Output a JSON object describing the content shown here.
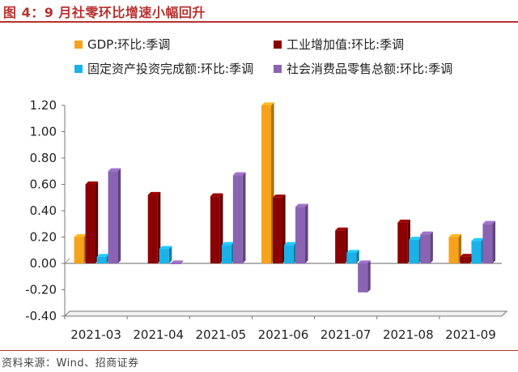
{
  "figure": {
    "title": "图 4：9 月社零环比增速小幅回升",
    "source": "资料来源：Wind、招商证券"
  },
  "chart_data": {
    "type": "bar",
    "categories": [
      "2021-03",
      "2021-04",
      "2021-05",
      "2021-06",
      "2021-07",
      "2021-08",
      "2021-09"
    ],
    "series": [
      {
        "name": "GDP:环比:季调",
        "color": "#f7a21b",
        "values": [
          0.2,
          null,
          null,
          1.2,
          null,
          null,
          0.2
        ]
      },
      {
        "name": "工业增加值:环比:季调",
        "color": "#8b0000",
        "values": [
          0.6,
          0.52,
          0.51,
          0.5,
          0.25,
          0.31,
          0.05
        ]
      },
      {
        "name": "固定资产投资完成额:环比:季调",
        "color": "#1ab2e8",
        "values": [
          0.05,
          0.11,
          0.14,
          0.14,
          0.08,
          0.18,
          0.17
        ]
      },
      {
        "name": "社会消费品零售总额:环比:季调",
        "color": "#8a63b3",
        "values": [
          0.7,
          0.0,
          0.67,
          0.43,
          -0.22,
          0.22,
          0.3
        ]
      }
    ],
    "y_ticks": [
      "1.20",
      "1.00",
      "0.80",
      "0.60",
      "0.40",
      "0.20",
      "0.00",
      "-0.20",
      "-0.40"
    ],
    "ylim": [
      -0.4,
      1.2
    ],
    "grid": false,
    "legend_position": "top"
  }
}
